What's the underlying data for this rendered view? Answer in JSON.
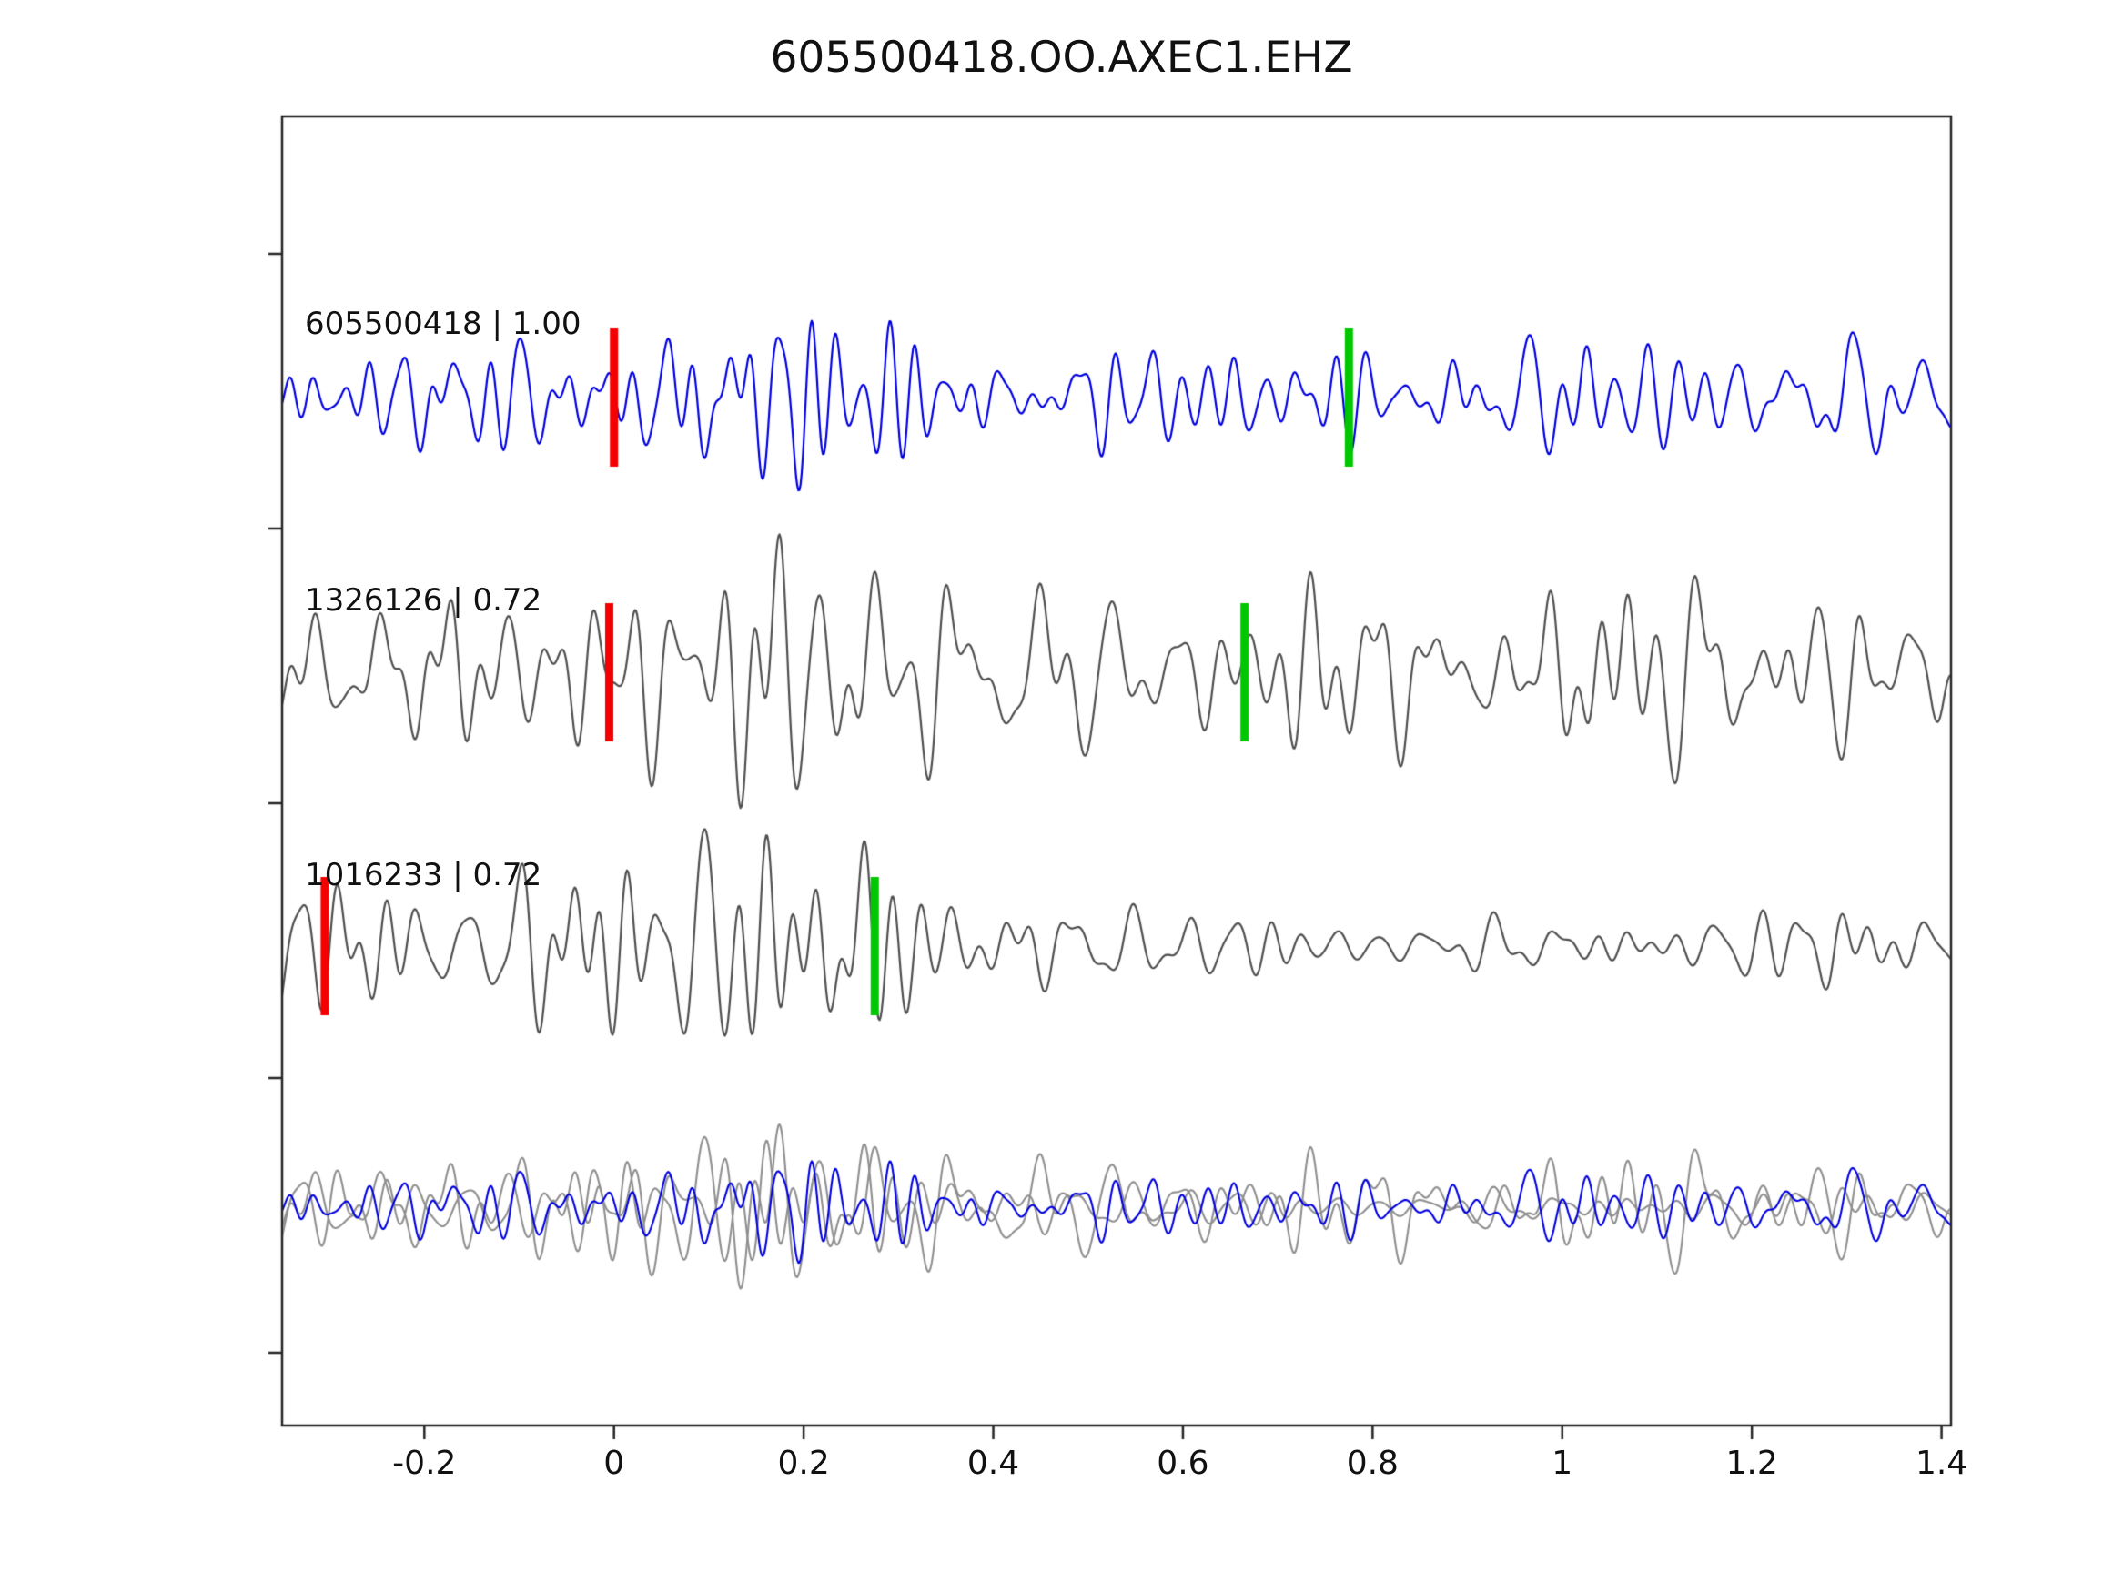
{
  "title": "605500418.OO.AXEC1.EHZ",
  "chart_data": {
    "type": "line",
    "title": "605500418.OO.AXEC1.EHZ",
    "xlim": [
      -0.35,
      1.41
    ],
    "xticks": [
      -0.2,
      0,
      0.2,
      0.4,
      0.6,
      0.8,
      1,
      1.2,
      1.4
    ],
    "xtick_labels": [
      "-0.2",
      "0",
      "0.2",
      "0.4",
      "0.6",
      "0.8",
      "1",
      "1.2",
      "1.4"
    ],
    "grid": false,
    "legend": "none",
    "colors": {
      "template": "#0000e0",
      "match": "#4f4f4f",
      "overlay_gray": "#8f8f8f",
      "red_pick": "#f50000",
      "green_pick": "#00c800",
      "axis": "#262626",
      "text": "#111111",
      "background": "#ffffff"
    },
    "traces": [
      {
        "id": "605500418",
        "label": "605500418 | 1.00",
        "similarity": 1.0,
        "color_key": "template",
        "red_pick_x": 0.0,
        "green_pick_x": 0.775,
        "synth": {
          "seed": 11,
          "fmin": 12,
          "fmax": 48,
          "env": [
            [
              -0.35,
              55
            ],
            [
              0.0,
              60
            ],
            [
              0.07,
              85
            ],
            [
              0.12,
              150
            ],
            [
              0.2,
              150
            ],
            [
              0.3,
              95
            ],
            [
              0.45,
              65
            ],
            [
              0.8,
              60
            ],
            [
              1.0,
              78
            ],
            [
              1.41,
              62
            ]
          ]
        }
      },
      {
        "id": "1326126",
        "label": "1326126 | 0.72",
        "similarity": 0.72,
        "color_key": "match",
        "red_pick_x": -0.005,
        "green_pick_x": 0.665,
        "synth": {
          "seed": 47,
          "fmin": 10,
          "fmax": 42,
          "env": [
            [
              -0.35,
              70
            ],
            [
              -0.02,
              95
            ],
            [
              0.05,
              115
            ],
            [
              0.3,
              105
            ],
            [
              0.6,
              90
            ],
            [
              0.9,
              108
            ],
            [
              1.41,
              96
            ]
          ]
        }
      },
      {
        "id": "1016233",
        "label": "1016233 | 0.72",
        "similarity": 0.72,
        "color_key": "match",
        "red_pick_x": -0.305,
        "green_pick_x": 0.275,
        "synth": {
          "seed": 83,
          "fmin": 10,
          "fmax": 40,
          "env": [
            [
              -0.35,
              72
            ],
            [
              -0.1,
              95
            ],
            [
              0.0,
              135
            ],
            [
              0.15,
              148
            ],
            [
              0.3,
              112
            ],
            [
              0.42,
              62
            ],
            [
              0.55,
              42
            ],
            [
              0.8,
              36
            ],
            [
              1.41,
              30
            ]
          ]
        }
      }
    ],
    "overlay": {
      "scale": 0.6,
      "draw_order": [
        1,
        2,
        0
      ]
    }
  }
}
